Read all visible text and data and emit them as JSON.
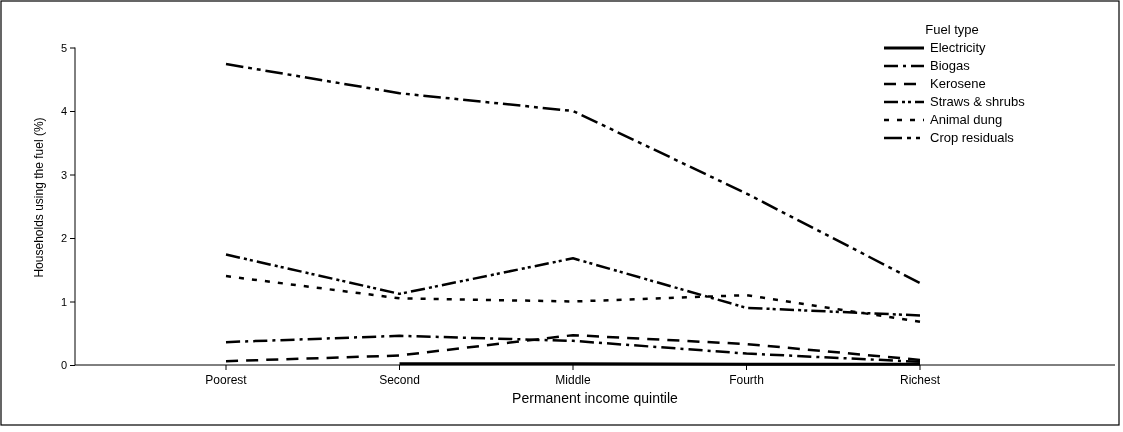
{
  "chart_data": {
    "type": "line",
    "xlabel": "Permanent income quintile",
    "ylabel": "Households using the fuel (%)",
    "legend_title": "Fuel type",
    "legend": "top right",
    "grid": false,
    "categories": [
      "Poorest",
      "Second",
      "Middle",
      "Fourth",
      "Richest"
    ],
    "ylim": [
      0,
      5
    ],
    "yticks": [
      0,
      1,
      2,
      3,
      4,
      5
    ],
    "series": [
      {
        "name": "Electricity",
        "color": "#000000",
        "line_style": "solid",
        "values": [
          null,
          0.02,
          0.02,
          0.01,
          0.01
        ]
      },
      {
        "name": "Biogas",
        "color": "#000000",
        "line_style": "dashed",
        "values": [
          0.36,
          0.46,
          0.38,
          0.18,
          0.05
        ]
      },
      {
        "name": "Kerosene",
        "color": "#000000",
        "line_style": "dashed",
        "values": [
          0.06,
          0.15,
          0.47,
          0.33,
          0.08
        ]
      },
      {
        "name": "Straws & shrubs",
        "color": "#000000",
        "line_style": "dashed",
        "values": [
          1.74,
          1.12,
          1.68,
          0.9,
          0.78
        ]
      },
      {
        "name": "Animal dung",
        "color": "#000000",
        "line_style": "dotted",
        "values": [
          1.4,
          1.05,
          1.0,
          1.1,
          0.68
        ]
      },
      {
        "name": "Crop residuals",
        "color": "#000000",
        "line_style": "dashed",
        "values": [
          4.74,
          4.28,
          4.0,
          2.7,
          1.29
        ]
      }
    ]
  }
}
